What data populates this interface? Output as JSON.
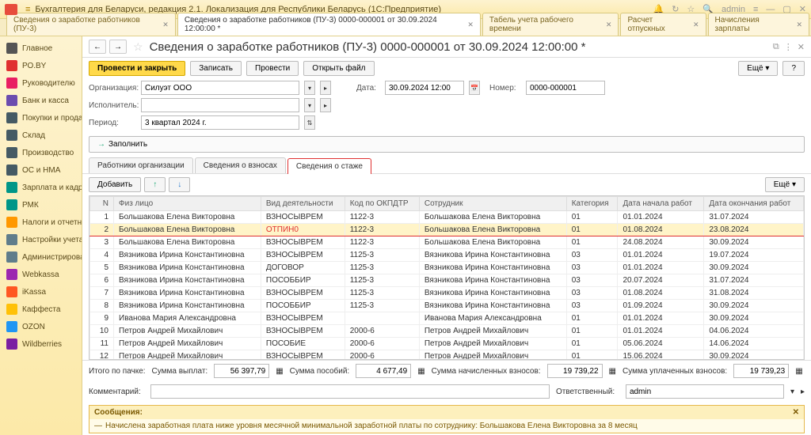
{
  "app": {
    "title": "Бухгалтерия для Беларуси, редакция 2.1. Локализация для Республики Беларусь   (1С:Предприятие)",
    "user": "admin"
  },
  "tabs": [
    {
      "label": "Сведения о заработке работников (ПУ-3)",
      "active": false
    },
    {
      "label": "Сведения о заработке работников (ПУ-3) 0000-000001 от 30.09.2024 12:00:00 *",
      "active": true
    },
    {
      "label": "Табель учета рабочего времени",
      "active": false
    },
    {
      "label": "Расчет отпускных",
      "active": false
    },
    {
      "label": "Начисления зарплаты",
      "active": false
    }
  ],
  "sidebar": [
    {
      "label": "Главное",
      "color": "#555"
    },
    {
      "label": "РО.BY",
      "color": "#e03030"
    },
    {
      "label": "Руководителю",
      "color": "#e91e63"
    },
    {
      "label": "Банк и касса",
      "color": "#6b4caf"
    },
    {
      "label": "Покупки и продажи",
      "color": "#455a64"
    },
    {
      "label": "Склад",
      "color": "#455a64"
    },
    {
      "label": "Производство",
      "color": "#455a64"
    },
    {
      "label": "ОС и НМА",
      "color": "#455a64"
    },
    {
      "label": "Зарплата и кадры",
      "color": "#009688"
    },
    {
      "label": "РМК",
      "color": "#009688"
    },
    {
      "label": "Налоги и отчетность",
      "color": "#ff9800"
    },
    {
      "label": "Настройки учета",
      "color": "#607d8b"
    },
    {
      "label": "Администрирование",
      "color": "#607d8b"
    },
    {
      "label": "Webkassa",
      "color": "#9c27b0"
    },
    {
      "label": "iKassa",
      "color": "#ff5722"
    },
    {
      "label": "Каффеста",
      "color": "#ffc107"
    },
    {
      "label": "OZON",
      "color": "#2196f3"
    },
    {
      "label": "Wildberries",
      "color": "#7b1fa2"
    }
  ],
  "doc": {
    "title": "Сведения о заработке работников (ПУ-3) 0000-000001 от 30.09.2024 12:00:00 *",
    "post_close": "Провести и закрыть",
    "write": "Записать",
    "post": "Провести",
    "open_file": "Открыть файл",
    "more": "Ещё",
    "org_label": "Организация:",
    "org_value": "Силуэт ООО",
    "date_label": "Дата:",
    "date_value": "30.09.2024 12:00",
    "number_label": "Номер:",
    "number_value": "0000-000001",
    "exec_label": "Исполнитель:",
    "exec_value": "",
    "period_label": "Период:",
    "period_value": "3 квартал 2024 г.",
    "fill": "Заполнить"
  },
  "subtabs": {
    "t1": "Работники организации",
    "t2": "Сведения о взносах",
    "t3": "Сведения о стаже",
    "add": "Добавить"
  },
  "table": {
    "cols": {
      "n": "N",
      "fio": "Физ лицо",
      "act": "Вид деятельности",
      "code": "Код по ОКПДТР",
      "emp": "Сотрудник",
      "cat": "Категория",
      "dfrom": "Дата начала работ",
      "dto": "Дата окончания работ"
    },
    "rows": [
      {
        "n": 1,
        "fio": "Большакова Елена Викторовна",
        "act": "ВЗНОСЫВРЕМ",
        "code": "1122-3",
        "emp": "Большакова Елена Викторовна",
        "cat": "01",
        "dfrom": "01.01.2024",
        "dto": "31.07.2024",
        "hl": false
      },
      {
        "n": 2,
        "fio": "Большакова Елена Викторовна",
        "act": "ОТПИН0",
        "code": "1122-3",
        "emp": "Большакова Елена Викторовна",
        "cat": "01",
        "dfrom": "01.08.2024",
        "dto": "23.08.2024",
        "hl": true
      },
      {
        "n": 3,
        "fio": "Большакова Елена Викторовна",
        "act": "ВЗНОСЫВРЕМ",
        "code": "1122-3",
        "emp": "Большакова Елена Викторовна",
        "cat": "01",
        "dfrom": "24.08.2024",
        "dto": "30.09.2024",
        "hl": false
      },
      {
        "n": 4,
        "fio": "Вязникова Ирина Константиновна",
        "act": "ВЗНОСЫВРЕМ",
        "code": "1125-3",
        "emp": "Вязникова Ирина Константиновна",
        "cat": "03",
        "dfrom": "01.01.2024",
        "dto": "19.07.2024",
        "hl": false
      },
      {
        "n": 5,
        "fio": "Вязникова Ирина Константиновна",
        "act": "ДОГОВОР",
        "code": "1125-3",
        "emp": "Вязникова Ирина Константиновна",
        "cat": "03",
        "dfrom": "01.01.2024",
        "dto": "30.09.2024",
        "hl": false
      },
      {
        "n": 6,
        "fio": "Вязникова Ирина Константиновна",
        "act": "ПОСОББИР",
        "code": "1125-3",
        "emp": "Вязникова Ирина Константиновна",
        "cat": "03",
        "dfrom": "20.07.2024",
        "dto": "31.07.2024",
        "hl": false
      },
      {
        "n": 7,
        "fio": "Вязникова Ирина Константиновна",
        "act": "ВЗНОСЫВРЕМ",
        "code": "1125-3",
        "emp": "Вязникова Ирина Константиновна",
        "cat": "03",
        "dfrom": "01.08.2024",
        "dto": "31.08.2024",
        "hl": false
      },
      {
        "n": 8,
        "fio": "Вязникова Ирина Константиновна",
        "act": "ПОСОББИР",
        "code": "1125-3",
        "emp": "Вязникова Ирина Константиновна",
        "cat": "03",
        "dfrom": "01.09.2024",
        "dto": "30.09.2024",
        "hl": false
      },
      {
        "n": 9,
        "fio": "Иванова Мария Александровна",
        "act": "ВЗНОСЫВРЕМ",
        "code": "",
        "emp": "Иванова Мария Александровна",
        "cat": "01",
        "dfrom": "01.01.2024",
        "dto": "30.09.2024",
        "hl": false
      },
      {
        "n": 10,
        "fio": "Петров Андрей Михайлович",
        "act": "ВЗНОСЫВРЕМ",
        "code": "2000-6",
        "emp": "Петров Андрей Михайлович",
        "cat": "01",
        "dfrom": "01.01.2024",
        "dto": "04.06.2024",
        "hl": false
      },
      {
        "n": 11,
        "fio": "Петров Андрей Михайлович",
        "act": "ПОСОБИЕ",
        "code": "2000-6",
        "emp": "Петров Андрей Михайлович",
        "cat": "01",
        "dfrom": "05.06.2024",
        "dto": "14.06.2024",
        "hl": false
      },
      {
        "n": 12,
        "fio": "Петров Андрей Михайлович",
        "act": "ВЗНОСЫВРЕМ",
        "code": "2000-6",
        "emp": "Петров Андрей Михайлович",
        "cat": "01",
        "dfrom": "15.06.2024",
        "dto": "30.09.2024",
        "hl": false
      }
    ]
  },
  "totals": {
    "pack": "Итого по пачке:",
    "pay": "Сумма выплат:",
    "pay_v": "56 397,79",
    "ben": "Сумма пособий:",
    "ben_v": "4 677,49",
    "assess": "Сумма начисленных взносов:",
    "assess_v": "19 739,22",
    "paid": "Сумма уплаченных взносов:",
    "paid_v": "19 739,23"
  },
  "footer": {
    "comment": "Комментарий:",
    "resp": "Ответственный:",
    "resp_v": "admin",
    "msg_head": "Сообщения:",
    "msg_body": "Начислена заработная плата ниже уровня месячной минимальной заработной платы по сотруднику: Большакова Елена Викторовна за 8 месяц"
  }
}
